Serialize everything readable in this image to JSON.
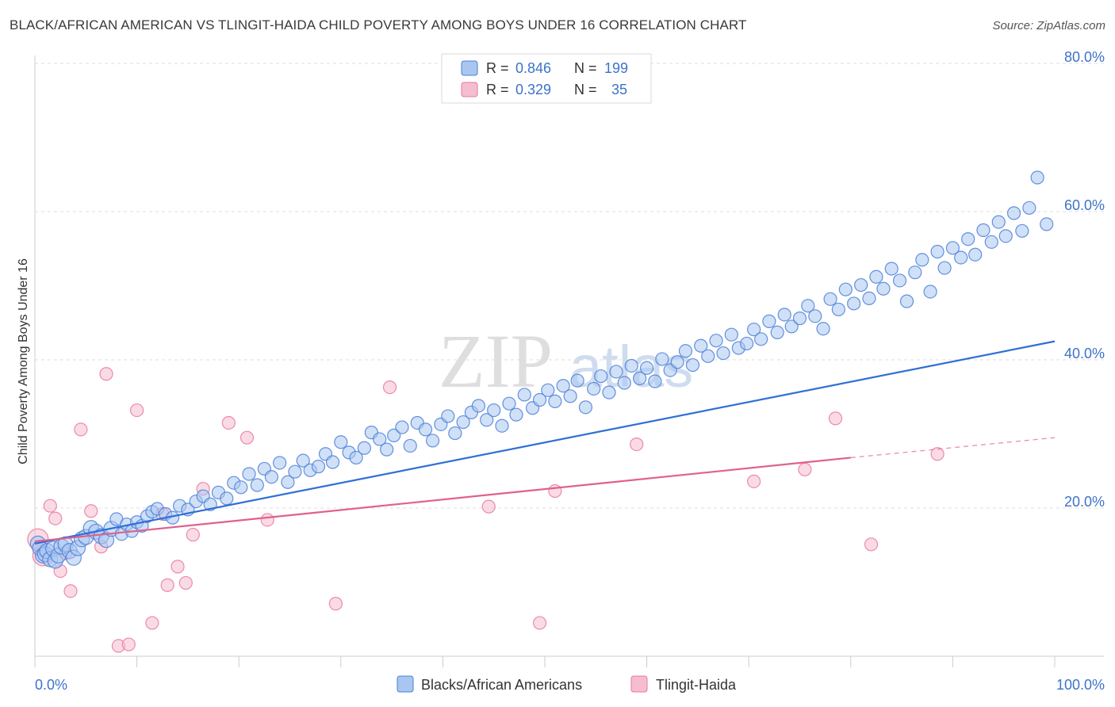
{
  "title": "BLACK/AFRICAN AMERICAN VS TLINGIT-HAIDA CHILD POVERTY AMONG BOYS UNDER 16 CORRELATION CHART",
  "source": "Source: ZipAtlas.com",
  "watermark": {
    "zip": "ZIP",
    "atlas": "atlas"
  },
  "colors": {
    "blue": "#4a7fd8",
    "blue_fill": "#a9c6f0",
    "blue_line": "#2f6fd6",
    "pink": "#e8799c",
    "pink_fill": "#f6bdd0",
    "pink_line": "#e0608c",
    "axis_label": "#3d73c8",
    "grid": "#dddddd"
  },
  "legend": {
    "rows": [
      {
        "r_label": "R =",
        "r_value": "0.846",
        "n_label": "N =",
        "n_value": "199"
      },
      {
        "r_label": "R =",
        "r_value": "0.329",
        "n_label": "N =",
        "n_value": "35"
      }
    ]
  },
  "bottom_legend": [
    "Blacks/African Americans",
    "Tlingit-Haida"
  ],
  "chart_data": {
    "type": "scatter",
    "title": "BLACK/AFRICAN AMERICAN VS TLINGIT-HAIDA CHILD POVERTY AMONG BOYS UNDER 16 CORRELATION CHART",
    "xlabel": "",
    "ylabel": "Child Poverty Among Boys Under 16",
    "xlim": [
      0,
      100
    ],
    "ylim": [
      0,
      80
    ],
    "x_tick_labels": [
      "0.0%",
      "100.0%"
    ],
    "y_ticks": [
      20,
      40,
      60,
      80
    ],
    "y_tick_labels": [
      "20.0%",
      "40.0%",
      "60.0%",
      "80.0%"
    ],
    "grid": true,
    "legend_position": "top-center",
    "series": [
      {
        "name": "Blacks/African Americans",
        "R": 0.846,
        "N": 199,
        "trend": {
          "x": [
            0,
            100
          ],
          "y": [
            15.2,
            42.5
          ],
          "style": "solid"
        },
        "points": [
          [
            0.3,
            15.2
          ],
          [
            0.5,
            14.6
          ],
          [
            0.8,
            13.6
          ],
          [
            1.0,
            13.8
          ],
          [
            1.2,
            14.2
          ],
          [
            1.5,
            13.1
          ],
          [
            1.8,
            14.5
          ],
          [
            2.0,
            12.9
          ],
          [
            2.3,
            13.6
          ],
          [
            2.6,
            14.8
          ],
          [
            3.0,
            15.1
          ],
          [
            3.4,
            14.2
          ],
          [
            3.8,
            13.3
          ],
          [
            4.2,
            14.6
          ],
          [
            4.6,
            15.8
          ],
          [
            5.0,
            16.1
          ],
          [
            5.5,
            17.3
          ],
          [
            6.0,
            16.8
          ],
          [
            6.5,
            16.2
          ],
          [
            7.0,
            15.7
          ],
          [
            7.5,
            17.2
          ],
          [
            8.0,
            18.5
          ],
          [
            8.5,
            16.5
          ],
          [
            9.0,
            17.8
          ],
          [
            9.5,
            16.9
          ],
          [
            10.0,
            18.1
          ],
          [
            10.5,
            17.6
          ],
          [
            11.0,
            18.9
          ],
          [
            11.5,
            19.5
          ],
          [
            12.0,
            19.9
          ],
          [
            12.8,
            19.2
          ],
          [
            13.5,
            18.7
          ],
          [
            14.2,
            20.3
          ],
          [
            15.0,
            19.8
          ],
          [
            15.8,
            20.9
          ],
          [
            16.5,
            21.6
          ],
          [
            17.2,
            20.5
          ],
          [
            18.0,
            22.1
          ],
          [
            18.8,
            21.3
          ],
          [
            19.5,
            23.4
          ],
          [
            20.2,
            22.8
          ],
          [
            21.0,
            24.6
          ],
          [
            21.8,
            23.1
          ],
          [
            22.5,
            25.3
          ],
          [
            23.2,
            24.2
          ],
          [
            24.0,
            26.1
          ],
          [
            24.8,
            23.5
          ],
          [
            25.5,
            24.9
          ],
          [
            26.3,
            26.4
          ],
          [
            27.0,
            25.1
          ],
          [
            27.8,
            25.6
          ],
          [
            28.5,
            27.3
          ],
          [
            29.2,
            26.2
          ],
          [
            30.0,
            28.9
          ],
          [
            30.8,
            27.5
          ],
          [
            31.5,
            26.8
          ],
          [
            32.3,
            28.1
          ],
          [
            33.0,
            30.2
          ],
          [
            33.8,
            29.3
          ],
          [
            34.5,
            27.9
          ],
          [
            35.2,
            29.8
          ],
          [
            36.0,
            30.9
          ],
          [
            36.8,
            28.4
          ],
          [
            37.5,
            31.5
          ],
          [
            38.3,
            30.6
          ],
          [
            39.0,
            29.1
          ],
          [
            39.8,
            31.3
          ],
          [
            40.5,
            32.4
          ],
          [
            41.2,
            30.1
          ],
          [
            42.0,
            31.6
          ],
          [
            42.8,
            32.9
          ],
          [
            43.5,
            33.8
          ],
          [
            44.3,
            31.9
          ],
          [
            45.0,
            33.2
          ],
          [
            45.8,
            31.1
          ],
          [
            46.5,
            34.1
          ],
          [
            47.2,
            32.6
          ],
          [
            48.0,
            35.3
          ],
          [
            48.8,
            33.5
          ],
          [
            49.5,
            34.6
          ],
          [
            50.3,
            35.9
          ],
          [
            51.0,
            34.4
          ],
          [
            51.8,
            36.5
          ],
          [
            52.5,
            35.1
          ],
          [
            53.2,
            37.2
          ],
          [
            54.0,
            33.6
          ],
          [
            54.8,
            36.1
          ],
          [
            55.5,
            37.8
          ],
          [
            56.3,
            35.6
          ],
          [
            57.0,
            38.4
          ],
          [
            57.8,
            36.9
          ],
          [
            58.5,
            39.2
          ],
          [
            59.3,
            37.5
          ],
          [
            60.0,
            38.9
          ],
          [
            60.8,
            37.1
          ],
          [
            61.5,
            40.1
          ],
          [
            62.3,
            38.6
          ],
          [
            63.0,
            39.7
          ],
          [
            63.8,
            41.2
          ],
          [
            64.5,
            39.3
          ],
          [
            65.3,
            41.9
          ],
          [
            66.0,
            40.5
          ],
          [
            66.8,
            42.6
          ],
          [
            67.5,
            40.9
          ],
          [
            68.3,
            43.4
          ],
          [
            69.0,
            41.6
          ],
          [
            69.8,
            42.2
          ],
          [
            70.5,
            44.1
          ],
          [
            71.2,
            42.8
          ],
          [
            72.0,
            45.2
          ],
          [
            72.8,
            43.7
          ],
          [
            73.5,
            46.1
          ],
          [
            74.2,
            44.5
          ],
          [
            75.0,
            45.6
          ],
          [
            75.8,
            47.3
          ],
          [
            76.5,
            45.9
          ],
          [
            77.3,
            44.2
          ],
          [
            78.0,
            48.2
          ],
          [
            78.8,
            46.8
          ],
          [
            79.5,
            49.5
          ],
          [
            80.3,
            47.6
          ],
          [
            81.0,
            50.1
          ],
          [
            81.8,
            48.3
          ],
          [
            82.5,
            51.2
          ],
          [
            83.2,
            49.6
          ],
          [
            84.0,
            52.3
          ],
          [
            84.8,
            50.7
          ],
          [
            85.5,
            47.9
          ],
          [
            86.3,
            51.8
          ],
          [
            87.0,
            53.5
          ],
          [
            87.8,
            49.2
          ],
          [
            88.5,
            54.6
          ],
          [
            89.2,
            52.4
          ],
          [
            90.0,
            55.1
          ],
          [
            90.8,
            53.8
          ],
          [
            91.5,
            56.3
          ],
          [
            92.2,
            54.2
          ],
          [
            93.0,
            57.5
          ],
          [
            93.8,
            55.9
          ],
          [
            94.5,
            58.6
          ],
          [
            95.2,
            56.7
          ],
          [
            96.0,
            59.8
          ],
          [
            96.8,
            57.4
          ],
          [
            97.5,
            60.5
          ],
          [
            98.3,
            64.6
          ],
          [
            99.2,
            58.3
          ]
        ]
      },
      {
        "name": "Tlingit-Haida",
        "R": 0.329,
        "N": 35,
        "trend": {
          "x": [
            0,
            80
          ],
          "y": [
            15.5,
            26.8
          ],
          "style": "solid",
          "dashed_extension_to": [
            100,
            29.5
          ]
        },
        "points": [
          [
            0.3,
            15.8
          ],
          [
            0.8,
            13.6
          ],
          [
            1.5,
            20.3
          ],
          [
            2.0,
            18.6
          ],
          [
            2.5,
            11.5
          ],
          [
            3.0,
            13.9
          ],
          [
            3.5,
            8.8
          ],
          [
            4.5,
            30.6
          ],
          [
            5.5,
            19.6
          ],
          [
            6.5,
            14.8
          ],
          [
            7.0,
            38.1
          ],
          [
            8.2,
            1.4
          ],
          [
            9.2,
            1.6
          ],
          [
            10.0,
            33.2
          ],
          [
            11.5,
            4.5
          ],
          [
            12.5,
            19.2
          ],
          [
            13.0,
            9.6
          ],
          [
            14.0,
            12.1
          ],
          [
            14.8,
            9.9
          ],
          [
            15.5,
            16.4
          ],
          [
            16.5,
            22.6
          ],
          [
            19.0,
            31.5
          ],
          [
            20.8,
            29.5
          ],
          [
            22.8,
            18.4
          ],
          [
            29.5,
            7.1
          ],
          [
            34.8,
            36.3
          ],
          [
            44.5,
            20.2
          ],
          [
            49.5,
            4.5
          ],
          [
            51.0,
            22.3
          ],
          [
            59.0,
            28.6
          ],
          [
            70.5,
            23.6
          ],
          [
            75.5,
            25.2
          ],
          [
            78.5,
            32.1
          ],
          [
            82.0,
            15.1
          ],
          [
            88.5,
            27.3
          ]
        ]
      }
    ]
  }
}
